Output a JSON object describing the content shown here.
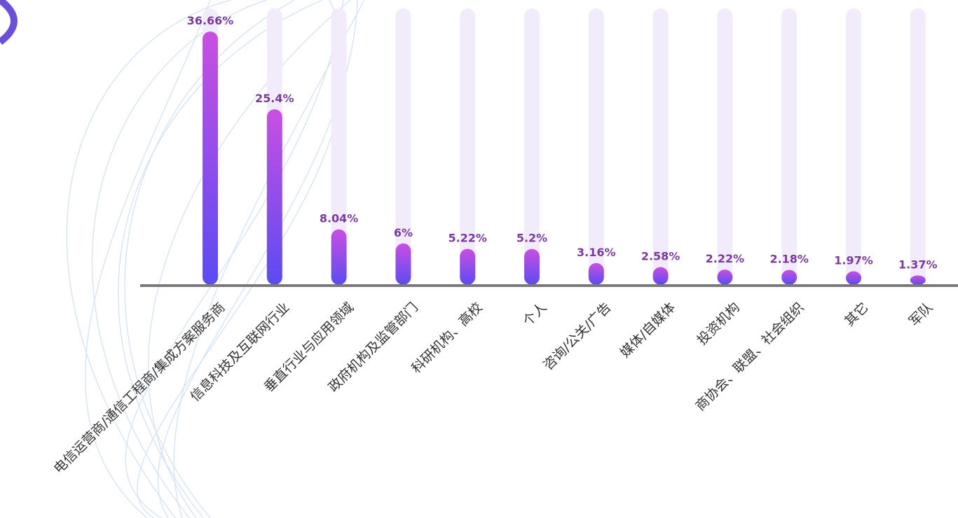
{
  "chart_data": {
    "type": "bar",
    "categories": [
      "电信运营商/通信工程商/集成方案服务商",
      "信息科技及互联网行业",
      "垂直行业与应用领域",
      "政府机构及监管部门",
      "科研机构、高校",
      "个人",
      "咨询/公关/广告",
      "媒体/自媒体",
      "投资机构",
      "商协会、联盟、社会组织",
      "其它",
      "军队"
    ],
    "values": [
      36.66,
      25.4,
      8.04,
      6,
      5.22,
      5.2,
      3.16,
      2.58,
      2.22,
      2.18,
      1.97,
      1.37
    ],
    "value_labels": [
      "36.66%",
      "25.4%",
      "8.04%",
      "6%",
      "5.22%",
      "5.2%",
      "3.16%",
      "2.58%",
      "2.22%",
      "2.18%",
      "1.97%",
      "1.37%"
    ],
    "ylim": [
      0,
      40
    ],
    "colors": [
      "#c94fe2",
      "#5a4cf2"
    ],
    "track_color": "#f1ebfb"
  }
}
